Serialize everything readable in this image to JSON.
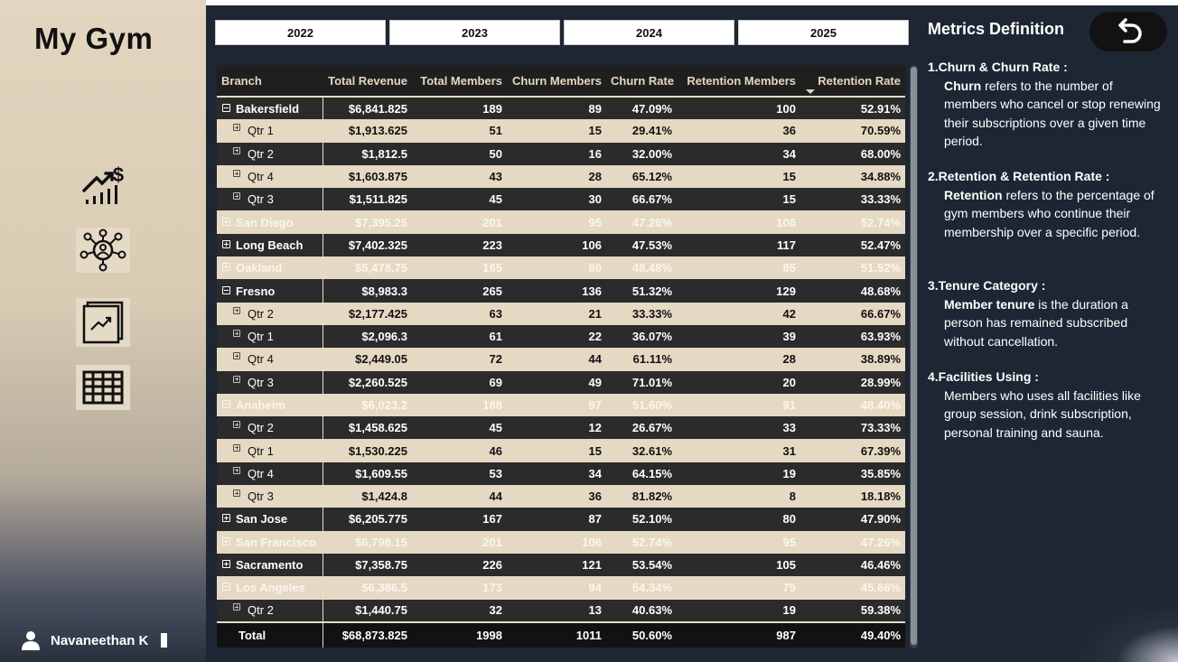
{
  "app": {
    "title": "My Gym"
  },
  "sidebar": {
    "nav": [
      {
        "icon": "revenue-growth-icon"
      },
      {
        "icon": "member-network-icon"
      },
      {
        "icon": "trend-report-icon"
      },
      {
        "icon": "table-grid-icon"
      }
    ],
    "user_name": "Navaneethan K"
  },
  "years": [
    "2022",
    "2023",
    "2024",
    "2025"
  ],
  "table": {
    "columns": [
      "Branch",
      "Total Revenue",
      "Total Members",
      "Churn Members",
      "Churn Rate",
      "Retention Members",
      "Retention Rate"
    ],
    "sorted_column": "Retention Rate",
    "rows": [
      {
        "level": "branch",
        "state": "collapse",
        "style": "dark",
        "cells": [
          "Bakersfield",
          "$6,841.825",
          "189",
          "89",
          "47.09%",
          "100",
          "52.91%"
        ]
      },
      {
        "level": "qtr",
        "state": "expand",
        "style": "light",
        "cells": [
          "Qtr 1",
          "$1,913.625",
          "51",
          "15",
          "29.41%",
          "36",
          "70.59%"
        ]
      },
      {
        "level": "qtr",
        "state": "expand",
        "style": "dark",
        "cells": [
          "Qtr 2",
          "$1,812.5",
          "50",
          "16",
          "32.00%",
          "34",
          "68.00%"
        ]
      },
      {
        "level": "qtr",
        "state": "expand",
        "style": "light",
        "cells": [
          "Qtr 4",
          "$1,603.875",
          "43",
          "28",
          "65.12%",
          "15",
          "34.88%"
        ]
      },
      {
        "level": "qtr",
        "state": "expand",
        "style": "dark",
        "cells": [
          "Qtr 3",
          "$1,511.825",
          "45",
          "30",
          "66.67%",
          "15",
          "33.33%"
        ]
      },
      {
        "level": "branch",
        "state": "expand",
        "style": "light-faded",
        "cells": [
          "San Diego",
          "$7,395.25",
          "201",
          "95",
          "47.26%",
          "106",
          "52.74%"
        ]
      },
      {
        "level": "branch",
        "state": "expand",
        "style": "dark",
        "cells": [
          "Long Beach",
          "$7,402.325",
          "223",
          "106",
          "47.53%",
          "117",
          "52.47%"
        ]
      },
      {
        "level": "branch",
        "state": "expand",
        "style": "light-faded",
        "cells": [
          "Oakland",
          "$5,478.75",
          "165",
          "80",
          "48.48%",
          "85",
          "51.52%"
        ]
      },
      {
        "level": "branch",
        "state": "collapse",
        "style": "dark",
        "cells": [
          "Fresno",
          "$8,983.3",
          "265",
          "136",
          "51.32%",
          "129",
          "48.68%"
        ]
      },
      {
        "level": "qtr",
        "state": "expand",
        "style": "light",
        "cells": [
          "Qtr 2",
          "$2,177.425",
          "63",
          "21",
          "33.33%",
          "42",
          "66.67%"
        ]
      },
      {
        "level": "qtr",
        "state": "expand",
        "style": "dark",
        "cells": [
          "Qtr 1",
          "$2,096.3",
          "61",
          "22",
          "36.07%",
          "39",
          "63.93%"
        ]
      },
      {
        "level": "qtr",
        "state": "expand",
        "style": "light",
        "cells": [
          "Qtr 4",
          "$2,449.05",
          "72",
          "44",
          "61.11%",
          "28",
          "38.89%"
        ]
      },
      {
        "level": "qtr",
        "state": "expand",
        "style": "dark",
        "cells": [
          "Qtr 3",
          "$2,260.525",
          "69",
          "49",
          "71.01%",
          "20",
          "28.99%"
        ]
      },
      {
        "level": "branch",
        "state": "collapse",
        "style": "light-faded",
        "cells": [
          "Anaheim",
          "$6,023.2",
          "188",
          "97",
          "51.60%",
          "91",
          "48.40%"
        ]
      },
      {
        "level": "qtr",
        "state": "expand",
        "style": "dark",
        "cells": [
          "Qtr 2",
          "$1,458.625",
          "45",
          "12",
          "26.67%",
          "33",
          "73.33%"
        ]
      },
      {
        "level": "qtr",
        "state": "expand",
        "style": "light",
        "cells": [
          "Qtr 1",
          "$1,530.225",
          "46",
          "15",
          "32.61%",
          "31",
          "67.39%"
        ]
      },
      {
        "level": "qtr",
        "state": "expand",
        "style": "dark",
        "cells": [
          "Qtr 4",
          "$1,609.55",
          "53",
          "34",
          "64.15%",
          "19",
          "35.85%"
        ]
      },
      {
        "level": "qtr",
        "state": "expand",
        "style": "light",
        "cells": [
          "Qtr 3",
          "$1,424.8",
          "44",
          "36",
          "81.82%",
          "8",
          "18.18%"
        ]
      },
      {
        "level": "branch",
        "state": "expand",
        "style": "dark",
        "cells": [
          "San Jose",
          "$6,205.775",
          "167",
          "87",
          "52.10%",
          "80",
          "47.90%"
        ]
      },
      {
        "level": "branch",
        "state": "expand",
        "style": "light-faded",
        "cells": [
          "San Francisco",
          "$6,798.15",
          "201",
          "106",
          "52.74%",
          "95",
          "47.26%"
        ]
      },
      {
        "level": "branch",
        "state": "expand",
        "style": "dark",
        "cells": [
          "Sacramento",
          "$7,358.75",
          "226",
          "121",
          "53.54%",
          "105",
          "46.46%"
        ]
      },
      {
        "level": "branch",
        "state": "collapse",
        "style": "light-faded",
        "cells": [
          "Los Angeles",
          "$6,386.5",
          "173",
          "94",
          "54.34%",
          "79",
          "45.66%"
        ]
      },
      {
        "level": "qtr",
        "state": "expand",
        "style": "dark",
        "cells": [
          "Qtr 2",
          "$1,440.75",
          "32",
          "13",
          "40.63%",
          "19",
          "59.38%"
        ]
      }
    ],
    "total": [
      "Total",
      "$68,873.825",
      "1998",
      "1011",
      "50.60%",
      "987",
      "49.40%"
    ]
  },
  "metrics": {
    "title": "Metrics Definition",
    "definitions": [
      {
        "heading": "1.Churn & Churn Rate :",
        "term": "Churn",
        "text": " refers to the number of members who cancel or stop renewing their subscriptions over a given time period."
      },
      {
        "heading": "2.Retention & Retention Rate :",
        "term": "Retention",
        "text": " refers to the percentage of  gym members who continue their membership over a specific period."
      },
      {
        "heading": "3.Tenure Category :",
        "term": "Member tenure",
        "text": " is the duration a person has remained subscribed without cancellation."
      },
      {
        "heading": "4.Facilities Using :",
        "term": "",
        "text": "Members who uses all facilities like group session, drink subscription, personal training and sauna."
      }
    ]
  }
}
